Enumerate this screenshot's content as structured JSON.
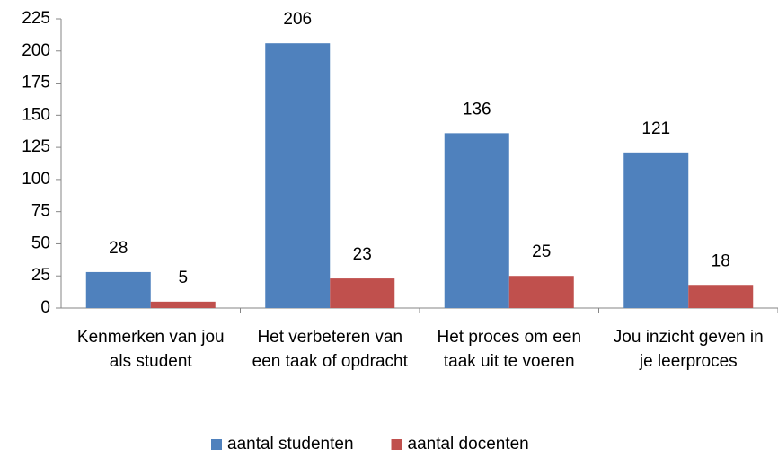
{
  "chart_data": {
    "type": "bar",
    "categories": [
      "Kenmerken van jou als student",
      "Het verbeteren van een taak of opdracht",
      "Het proces om een taak uit te voeren",
      "Jou inzicht geven in je leerproces"
    ],
    "series": [
      {
        "name": "aantal studenten",
        "color": "#4f81bd",
        "values": [
          28,
          206,
          136,
          121
        ]
      },
      {
        "name": "aantal docenten",
        "color": "#c0504d",
        "values": [
          5,
          23,
          25,
          18
        ]
      }
    ],
    "ylim": [
      0,
      225
    ],
    "yticks": [
      0,
      25,
      50,
      75,
      100,
      125,
      150,
      175,
      200,
      225
    ],
    "grid": false,
    "legend": "bottom"
  }
}
